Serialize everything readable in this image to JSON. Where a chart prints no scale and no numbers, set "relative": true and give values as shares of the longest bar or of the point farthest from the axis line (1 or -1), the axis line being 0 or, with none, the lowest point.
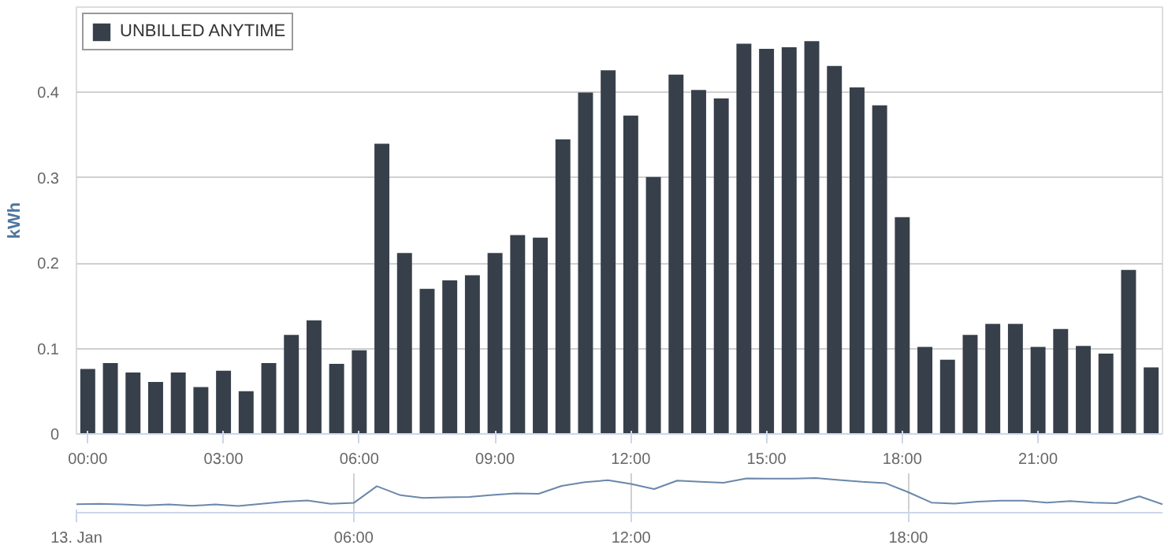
{
  "chart_data": [
    {
      "type": "bar",
      "ylabel": "kWh",
      "legend": "top left",
      "grid": "y",
      "x": [
        0,
        0.5,
        1,
        1.5,
        2,
        2.5,
        3,
        3.5,
        4,
        4.5,
        5,
        5.5,
        6,
        6.5,
        7,
        7.5,
        8,
        8.5,
        9,
        9.5,
        10,
        10.5,
        11,
        11.5,
        12,
        12.5,
        13,
        13.5,
        14,
        14.5,
        15,
        15.5,
        16,
        16.5,
        17,
        17.5,
        18,
        18.5,
        19,
        19.5,
        20,
        20.5,
        21,
        21.5,
        22,
        22.5,
        23,
        23.5
      ],
      "series": [
        {
          "name": "UNBILLED ANYTIME",
          "color": "#37404a",
          "values": [
            0.076,
            0.083,
            0.072,
            0.061,
            0.072,
            0.055,
            0.074,
            0.05,
            0.083,
            0.116,
            0.133,
            0.082,
            0.098,
            0.34,
            0.212,
            0.17,
            0.18,
            0.186,
            0.212,
            0.233,
            0.23,
            0.345,
            0.4,
            0.426,
            0.373,
            0.301,
            0.421,
            0.403,
            0.393,
            0.457,
            0.451,
            0.453,
            0.46,
            0.431,
            0.406,
            0.385,
            0.254,
            0.102,
            0.087,
            0.116,
            0.129,
            0.129,
            0.102,
            0.123,
            0.103,
            0.094,
            0.192,
            0.078
          ]
        }
      ],
      "xlim": [
        -0.25,
        23.75
      ],
      "xticks": [
        {
          "value": 0,
          "label": "00:00"
        },
        {
          "value": 3,
          "label": "03:00"
        },
        {
          "value": 6,
          "label": "06:00"
        },
        {
          "value": 9,
          "label": "09:00"
        },
        {
          "value": 12,
          "label": "12:00"
        },
        {
          "value": 15,
          "label": "15:00"
        },
        {
          "value": 18,
          "label": "18:00"
        },
        {
          "value": 21,
          "label": "21:00"
        }
      ],
      "ylim": [
        0,
        0.5
      ],
      "yticks": [
        0,
        0.1,
        0.2,
        0.3,
        0.4
      ]
    },
    {
      "type": "line",
      "relative": true,
      "grid": "x",
      "tick_labels": "x",
      "x": [
        0,
        0.5,
        1,
        1.5,
        2,
        2.5,
        3,
        3.5,
        4,
        4.5,
        5,
        5.5,
        6,
        6.5,
        7,
        7.5,
        8,
        8.5,
        9,
        9.5,
        10,
        10.5,
        11,
        11.5,
        12,
        12.5,
        13,
        13.5,
        14,
        14.5,
        15,
        15.5,
        16,
        16.5,
        17,
        17.5,
        18,
        18.5,
        19,
        19.5,
        20,
        20.5,
        21,
        21.5,
        22,
        22.5,
        23,
        23.5
      ],
      "series": [
        {
          "color": "#6a87ab",
          "values": [
            0.17,
            0.18,
            0.16,
            0.13,
            0.16,
            0.12,
            0.16,
            0.11,
            0.18,
            0.25,
            0.29,
            0.18,
            0.21,
            0.74,
            0.46,
            0.37,
            0.39,
            0.4,
            0.46,
            0.51,
            0.5,
            0.75,
            0.87,
            0.93,
            0.81,
            0.65,
            0.92,
            0.88,
            0.85,
            0.99,
            0.98,
            0.98,
            1,
            0.94,
            0.88,
            0.84,
            0.55,
            0.22,
            0.19,
            0.25,
            0.28,
            0.28,
            0.22,
            0.27,
            0.22,
            0.2,
            0.42,
            0.17
          ]
        }
      ],
      "xlim": [
        0,
        23.5
      ],
      "xticks": [
        {
          "value": 0,
          "label": "13. Jan"
        },
        {
          "value": 6,
          "label": "06:00"
        },
        {
          "value": 12,
          "label": "12:00"
        },
        {
          "value": 18,
          "label": "18:00"
        }
      ]
    }
  ]
}
